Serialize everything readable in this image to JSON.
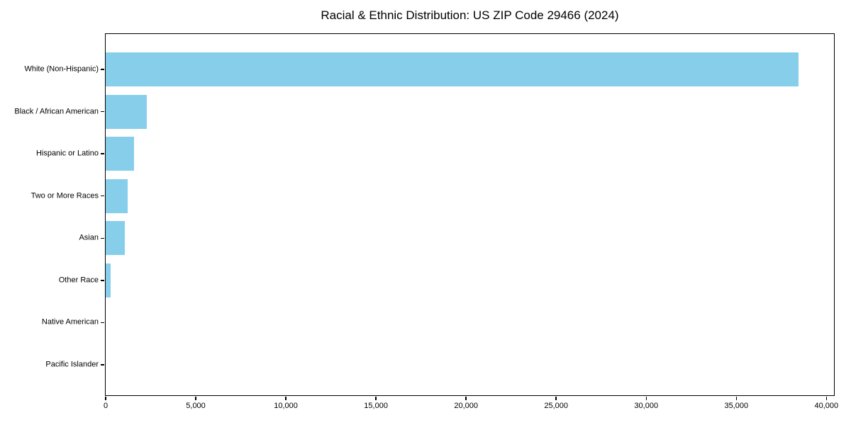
{
  "figure": {
    "title": "Racial & Ethnic Distribution: US ZIP Code 29466 (2024)",
    "background_color": "#ffffff",
    "axis_color": "#000000",
    "text_color": "#000000"
  },
  "chart_data": {
    "type": "bar",
    "orientation": "horizontal",
    "title": "Racial & Ethnic Distribution: US ZIP Code 29466 (2024)",
    "categories": [
      "White (Non-Hispanic)",
      "Black / African American",
      "Hispanic or Latino",
      "Two or More Races",
      "Asian",
      "Other Race",
      "Native American",
      "Pacific Islander"
    ],
    "values": [
      38450,
      2280,
      1560,
      1210,
      1070,
      275,
      0,
      0
    ],
    "bar_color": "#87ceeb",
    "xlabel": "",
    "ylabel": "",
    "xlim": [
      0,
      40380
    ],
    "x_ticks": [
      0,
      5000,
      10000,
      15000,
      20000,
      25000,
      30000,
      35000,
      40000
    ],
    "x_tick_labels": [
      "0",
      "5,000",
      "10,000",
      "15,000",
      "20,000",
      "25,000",
      "30,000",
      "35,000",
      "40,000"
    ],
    "grid": false,
    "legend": false
  }
}
